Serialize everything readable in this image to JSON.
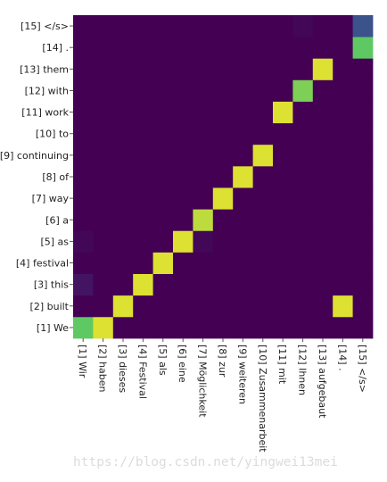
{
  "chart_data": {
    "type": "heatmap",
    "title": "",
    "xlabel": "",
    "ylabel": "",
    "x_labels": [
      "[1] Wir",
      "[2] haben",
      "[3] dieses",
      "[4] Festival",
      "[5] als",
      "[6] eine",
      "[7] Möglichkeit",
      "[8] zur",
      "[9] weiteren",
      "[10] Zusammenarbeit",
      "[11] mit",
      "[12] Ihnen",
      "[13] aufgebaut",
      "[14] .",
      "[15] </s>"
    ],
    "y_labels": [
      "[1] We",
      "[2] built",
      "[3] this",
      "[4] festival",
      "[5] as",
      "[6] a",
      "[7] way",
      "[8] of",
      "[9] continuing",
      "[10] to",
      "[11] work",
      "[12] with",
      "[13] them",
      "[14] .",
      "[15] </s>"
    ],
    "colors": {
      "low": "#440154",
      "mid_low": "#3b528b",
      "mid": "#21918c",
      "mid_high": "#5ec962",
      "high": "#fde725"
    },
    "values": [
      [
        0.75,
        0.95,
        0,
        0,
        0,
        0,
        0,
        0,
        0,
        0,
        0,
        0,
        0,
        0,
        0
      ],
      [
        0,
        0,
        0.95,
        0,
        0,
        0,
        0,
        0,
        0,
        0,
        0,
        0,
        0,
        0.95,
        0
      ],
      [
        0.06,
        0,
        0,
        0.95,
        0,
        0,
        0,
        0,
        0,
        0,
        0,
        0,
        0,
        0,
        0
      ],
      [
        0,
        0,
        0,
        0,
        0.95,
        0,
        0,
        0,
        0,
        0,
        0,
        0,
        0,
        0,
        0
      ],
      [
        0.02,
        0,
        0,
        0,
        0,
        0.95,
        0.02,
        0,
        0,
        0,
        0,
        0,
        0,
        0,
        0
      ],
      [
        0,
        0,
        0,
        0,
        0,
        0,
        0.9,
        0,
        0,
        0,
        0,
        0,
        0,
        0,
        0
      ],
      [
        0,
        0,
        0,
        0,
        0,
        0,
        0,
        0.95,
        0,
        0,
        0,
        0,
        0,
        0,
        0
      ],
      [
        0,
        0,
        0,
        0,
        0,
        0,
        0,
        0,
        0.95,
        0,
        0,
        0,
        0,
        0,
        0
      ],
      [
        0,
        0,
        0,
        0,
        0,
        0,
        0,
        0,
        0,
        0.95,
        0,
        0,
        0,
        0,
        0
      ],
      [
        0,
        0,
        0,
        0,
        0,
        0,
        0,
        0,
        0,
        0,
        0,
        0,
        0,
        0,
        0
      ],
      [
        0,
        0,
        0,
        0,
        0,
        0,
        0,
        0,
        0,
        0,
        0.95,
        0,
        0,
        0,
        0
      ],
      [
        0,
        0,
        0,
        0,
        0,
        0,
        0,
        0,
        0,
        0,
        0,
        0.8,
        0,
        0,
        0
      ],
      [
        0,
        0,
        0,
        0,
        0,
        0,
        0,
        0,
        0,
        0,
        0,
        0,
        0.95,
        0,
        0
      ],
      [
        0,
        0,
        0,
        0,
        0,
        0,
        0,
        0,
        0,
        0,
        0,
        0,
        0,
        0,
        0.75
      ],
      [
        0,
        0,
        0,
        0,
        0,
        0,
        0,
        0,
        0,
        0,
        0,
        0.02,
        0,
        0,
        0.25
      ]
    ]
  },
  "watermark": "https://blog.csdn.net/yingwei13mei"
}
